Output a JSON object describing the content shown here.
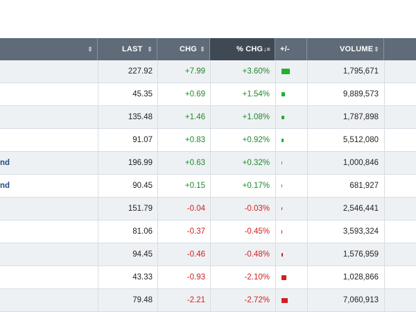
{
  "header": {
    "name_sort": "⇕",
    "last": "LAST",
    "last_sort": "⇕",
    "chg": "CHG",
    "chg_sort": "⇕",
    "pct_chg": "% CHG",
    "pct_sort": "↓≡",
    "plusminus": "+/-",
    "volume": "VOLUME",
    "volume_sort": "⇕"
  },
  "colors": {
    "positive": "#1e8a2a",
    "negative": "#d11f1f",
    "header_bg": "#5f6b78",
    "active_header_bg": "#3f4954"
  },
  "rows": [
    {
      "name": "",
      "last": "227.92",
      "chg": "+7.99",
      "pct": "+3.60%",
      "dir": "pos",
      "bar": 3.6,
      "volume": "1,795,671"
    },
    {
      "name": "",
      "last": "45.35",
      "chg": "+0.69",
      "pct": "+1.54%",
      "dir": "pos",
      "bar": 1.54,
      "volume": "9,889,573"
    },
    {
      "name": "",
      "last": "135.48",
      "chg": "+1.46",
      "pct": "+1.08%",
      "dir": "pos",
      "bar": 1.08,
      "volume": "1,787,898"
    },
    {
      "name": "",
      "last": "91.07",
      "chg": "+0.83",
      "pct": "+0.92%",
      "dir": "pos",
      "bar": 0.92,
      "volume": "5,512,080"
    },
    {
      "name": "nd",
      "last": "196.99",
      "chg": "+0.63",
      "pct": "+0.32%",
      "dir": "pos",
      "bar": 0.32,
      "volume": "1,000,846"
    },
    {
      "name": "nd",
      "last": "90.45",
      "chg": "+0.15",
      "pct": "+0.17%",
      "dir": "pos",
      "bar": 0.17,
      "volume": "681,927"
    },
    {
      "name": "",
      "last": "151.79",
      "chg": "-0.04",
      "pct": "-0.03%",
      "dir": "neg",
      "bar": 0.03,
      "volume": "2,546,441"
    },
    {
      "name": "",
      "last": "81.06",
      "chg": "-0.37",
      "pct": "-0.45%",
      "dir": "neg",
      "bar": 0.45,
      "volume": "3,593,324"
    },
    {
      "name": "",
      "last": "94.45",
      "chg": "-0.46",
      "pct": "-0.48%",
      "dir": "neg",
      "bar": 0.48,
      "volume": "1,576,959"
    },
    {
      "name": "",
      "last": "43.33",
      "chg": "-0.93",
      "pct": "-2.10%",
      "dir": "neg",
      "bar": 2.1,
      "volume": "1,028,866"
    },
    {
      "name": "",
      "last": "79.48",
      "chg": "-2.21",
      "pct": "-2.72%",
      "dir": "neg",
      "bar": 2.72,
      "volume": "7,060,913"
    }
  ]
}
